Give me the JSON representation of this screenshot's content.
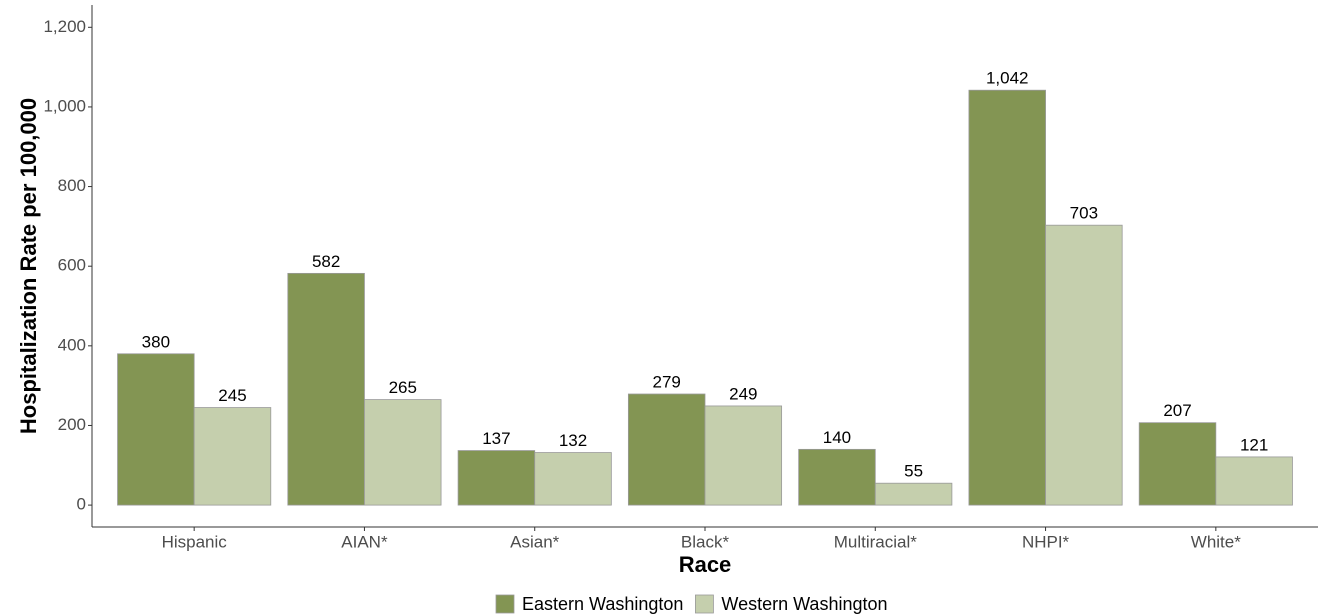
{
  "chart_data": {
    "type": "bar",
    "x_label": "Race",
    "y_label": "Hospitalization Rate per 100,000",
    "categories": [
      "Hispanic",
      "AIAN*",
      "Asian*",
      "Black*",
      "Multiracial*",
      "NHPI*",
      "White*"
    ],
    "series": [
      {
        "name": "Eastern Washington",
        "color": "#839553",
        "values": [
          380,
          582,
          137,
          279,
          140,
          1042,
          207
        ],
        "value_labels": [
          "380",
          "582",
          "137",
          "279",
          "140",
          "1,042",
          "207"
        ]
      },
      {
        "name": "Western Washington",
        "color": "#c5cfad",
        "values": [
          245,
          265,
          132,
          249,
          55,
          703,
          121
        ],
        "value_labels": [
          "245",
          "265",
          "132",
          "249",
          "55",
          "703",
          "121"
        ]
      }
    ],
    "ylim": [
      -55,
      1256
    ],
    "yticks": [
      0,
      200,
      400,
      600,
      800,
      {
        "value": 1000,
        "label": "1,000"
      },
      {
        "value": 1200,
        "label": "1,200"
      }
    ],
    "legend": "bottom"
  }
}
